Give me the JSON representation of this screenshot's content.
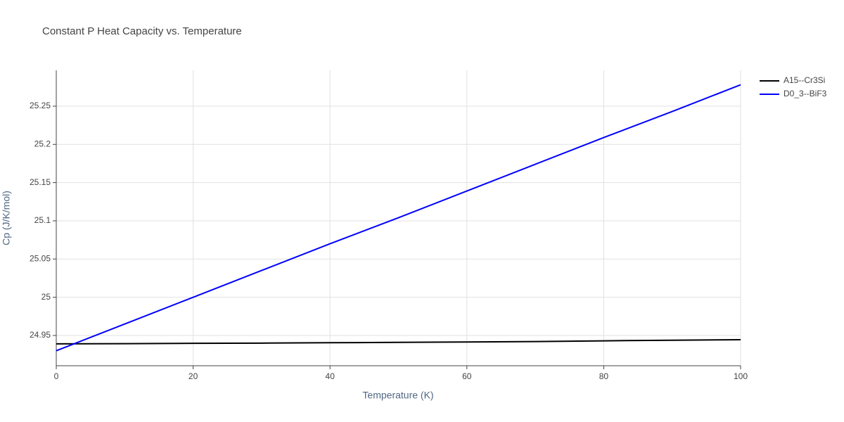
{
  "chart_data": {
    "type": "line",
    "title": "Constant P Heat Capacity vs. Temperature",
    "x_label": "Temperature (K)",
    "y_label": "Cp (J/K/mol)",
    "x": [
      0,
      10,
      20,
      30,
      40,
      50,
      60,
      70,
      80,
      90,
      100
    ],
    "series": [
      {
        "name": "A15--Cr3Si",
        "color": "#000000",
        "values": [
          24.939,
          24.9393,
          24.9397,
          24.94,
          24.9405,
          24.941,
          24.9415,
          24.942,
          24.943,
          24.9438,
          24.9445
        ]
      },
      {
        "name": "D0_3--BiF3",
        "color": "#0000ff",
        "values": [
          24.93,
          24.965,
          25.0,
          25.035,
          25.07,
          25.104,
          25.139,
          25.174,
          25.209,
          25.243,
          25.278
        ]
      }
    ],
    "xlim": [
      0,
      100
    ],
    "xticks": [
      0,
      20,
      40,
      60,
      80,
      100
    ],
    "ylim": [
      24.9104,
      25.2969
    ],
    "yticks": [
      24.95,
      25,
      25.05,
      25.1,
      25.15,
      25.2,
      25.25
    ],
    "grid": true,
    "legend": "top-right"
  }
}
